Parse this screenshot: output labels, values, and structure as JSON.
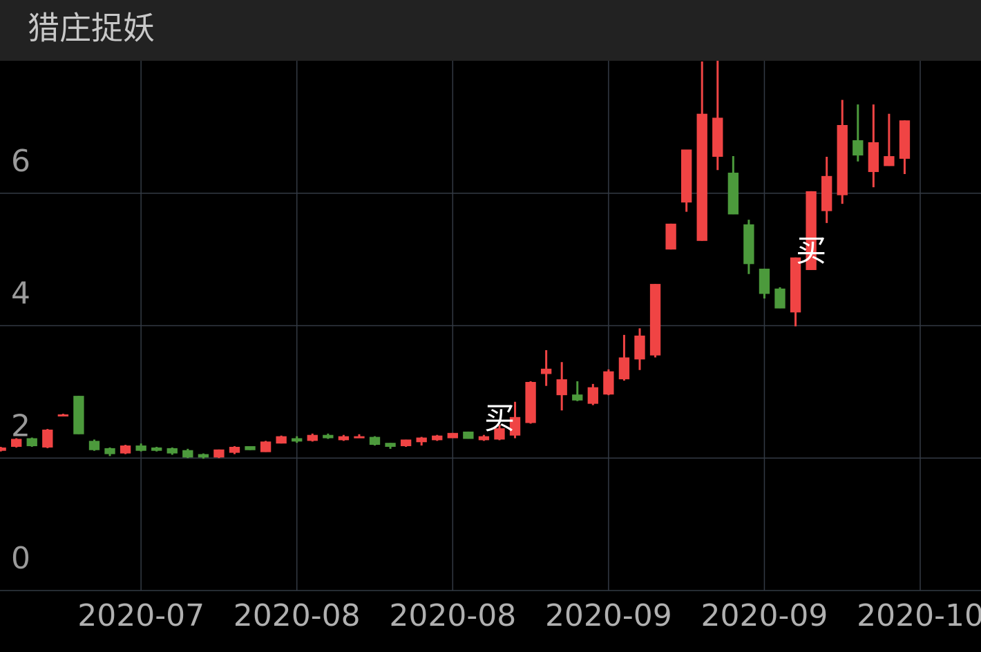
{
  "chart_data": {
    "type": "candlestick",
    "title": "猎庄捉妖",
    "up_color": "#f04444",
    "down_color": "#4c9a3c",
    "grid": true,
    "categories": [
      null,
      null,
      null,
      null,
      null,
      null,
      null,
      null,
      null,
      null,
      null,
      null,
      null,
      null,
      null,
      null,
      null,
      null,
      null,
      null,
      null,
      null,
      null,
      null,
      null,
      null,
      null,
      null,
      null,
      null,
      null,
      null,
      null,
      null,
      null,
      null,
      null,
      null,
      null,
      null,
      null,
      null,
      null,
      null,
      null,
      null,
      null,
      null,
      null,
      null,
      null,
      null,
      null,
      null,
      null,
      null,
      null,
      null,
      null
    ],
    "open": [
      2.11,
      2.17,
      2.3,
      2.16,
      2.64,
      2.94,
      2.26,
      2.15,
      2.07,
      2.19,
      2.16,
      2.15,
      2.12,
      2.06,
      2.01,
      2.08,
      2.18,
      2.09,
      2.22,
      2.3,
      2.26,
      2.35,
      2.27,
      2.3,
      2.32,
      2.23,
      2.18,
      2.24,
      2.27,
      2.3,
      2.4,
      2.27,
      2.28,
      2.34,
      2.53,
      3.27,
      2.95,
      2.96,
      2.82,
      2.96,
      3.19,
      3.49,
      3.55,
      5.15,
      5.86,
      5.28,
      6.55,
      6.31,
      5.53,
      4.86,
      4.56,
      4.2,
      4.84,
      5.73,
      5.97,
      6.8,
      6.32,
      6.41,
      6.52
    ],
    "high": [
      2.17,
      2.3,
      2.31,
      2.44,
      2.67,
      2.94,
      2.28,
      2.16,
      2.2,
      2.22,
      2.17,
      2.16,
      2.14,
      2.07,
      2.13,
      2.18,
      2.18,
      2.26,
      2.34,
      2.33,
      2.37,
      2.37,
      2.35,
      2.36,
      2.33,
      2.23,
      2.28,
      2.32,
      2.35,
      2.38,
      2.4,
      2.35,
      2.5,
      2.85,
      3.16,
      3.63,
      3.45,
      3.16,
      3.12,
      3.34,
      3.86,
      3.96,
      4.63,
      5.54,
      6.66,
      7.99,
      8.0,
      6.56,
      5.6,
      4.86,
      4.58,
      5.03,
      6.03,
      6.55,
      7.41,
      7.34,
      7.34,
      7.2,
      7.1
    ],
    "low": [
      2.1,
      2.16,
      2.17,
      2.15,
      2.63,
      2.36,
      2.11,
      2.03,
      2.06,
      2.1,
      2.1,
      2.05,
      2.0,
      1.99,
      2.0,
      2.06,
      2.12,
      2.09,
      2.22,
      2.23,
      2.25,
      2.29,
      2.26,
      2.3,
      2.19,
      2.14,
      2.17,
      2.19,
      2.26,
      2.3,
      2.29,
      2.26,
      2.27,
      2.3,
      2.52,
      3.09,
      2.72,
      2.86,
      2.8,
      2.95,
      3.17,
      3.33,
      3.52,
      5.15,
      5.72,
      5.28,
      6.35,
      5.68,
      4.78,
      4.41,
      4.26,
      3.99,
      4.84,
      5.55,
      5.84,
      6.48,
      6.09,
      6.41,
      6.29
    ],
    "close": [
      2.16,
      2.29,
      2.18,
      2.43,
      2.66,
      2.36,
      2.12,
      2.06,
      2.19,
      2.11,
      2.11,
      2.07,
      2.01,
      2.01,
      2.13,
      2.17,
      2.12,
      2.25,
      2.33,
      2.25,
      2.35,
      2.3,
      2.33,
      2.33,
      2.2,
      2.17,
      2.28,
      2.31,
      2.34,
      2.38,
      2.29,
      2.33,
      2.45,
      2.62,
      3.15,
      3.35,
      3.19,
      2.87,
      3.07,
      3.31,
      3.52,
      3.85,
      4.63,
      5.54,
      6.66,
      7.2,
      7.14,
      5.68,
      4.93,
      4.48,
      4.26,
      5.03,
      6.03,
      6.26,
      7.03,
      6.57,
      6.77,
      6.56,
      7.1
    ],
    "annotations": [
      {
        "text": "买",
        "category_index": 32,
        "value": 2.57
      },
      {
        "text": "买",
        "category_index": 52,
        "value": 5.1
      }
    ],
    "ylim": [
      0,
      8
    ],
    "yticks": [
      0,
      2,
      4,
      6
    ],
    "xlim": [
      -0.05,
      62.9
    ],
    "xticks": [
      {
        "value": 9,
        "label": "2020-07"
      },
      {
        "value": 19,
        "label": "2020-08"
      },
      {
        "value": 29,
        "label": "2020-08"
      },
      {
        "value": 39,
        "label": "2020-09"
      },
      {
        "value": 49,
        "label": "2020-09"
      },
      {
        "value": 59,
        "label": "2020-10"
      }
    ]
  }
}
